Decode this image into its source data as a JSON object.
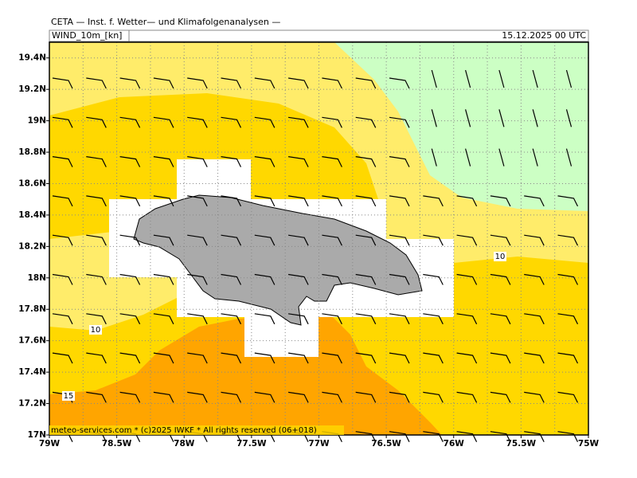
{
  "header": {
    "title": "CETA — Inst. f. Wetter— und Klimafolgenanalysen —",
    "field": "WIND_10m_[kn]",
    "valid_time": "15.12.2025 00 UTC"
  },
  "map": {
    "xlim": [
      -79,
      -75
    ],
    "ylim": [
      17,
      19.5
    ],
    "xticks": [
      {
        "value": -79,
        "label": "79W"
      },
      {
        "value": -78.5,
        "label": "78.5W"
      },
      {
        "value": -78,
        "label": "78W"
      },
      {
        "value": -77.5,
        "label": "77.5W"
      },
      {
        "value": -77,
        "label": "77W"
      },
      {
        "value": -76.5,
        "label": "76.5W"
      },
      {
        "value": -76,
        "label": "76W"
      },
      {
        "value": -75.5,
        "label": "75.5W"
      },
      {
        "value": -75,
        "label": "75W"
      }
    ],
    "yticks": [
      {
        "value": 17,
        "label": "17N"
      },
      {
        "value": 17.2,
        "label": "17.2N"
      },
      {
        "value": 17.4,
        "label": "17.4N"
      },
      {
        "value": 17.6,
        "label": "17.6N"
      },
      {
        "value": 17.8,
        "label": "17.8N"
      },
      {
        "value": 18,
        "label": "18N"
      },
      {
        "value": 18.2,
        "label": "18.2N"
      },
      {
        "value": 18.4,
        "label": "18.4N"
      },
      {
        "value": 18.6,
        "label": "18.6N"
      },
      {
        "value": 18.8,
        "label": "18.8N"
      },
      {
        "value": 19,
        "label": "19N"
      },
      {
        "value": 19.2,
        "label": "19.2N"
      },
      {
        "value": 19.4,
        "label": "19.4N"
      }
    ],
    "contour_labels": [
      10,
      10,
      15
    ]
  },
  "footer": "meteo-services.com * (c)2025 IWKF * All rights reserved (06+018)"
}
